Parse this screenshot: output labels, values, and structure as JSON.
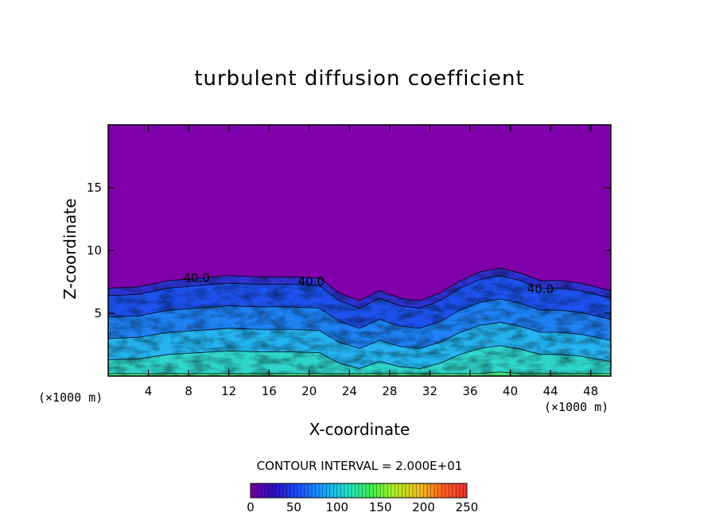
{
  "chart_data": {
    "type": "heatmap",
    "title": "turbulent diffusion coefficient",
    "xlabel": "X-coordinate",
    "ylabel": "Z-coordinate",
    "x_unit": "(×1000 m)",
    "z_unit": "(×1000 m)",
    "xlim": [
      0,
      50
    ],
    "ylim": [
      0,
      20
    ],
    "x_ticks": [
      4,
      8,
      12,
      16,
      20,
      24,
      28,
      32,
      36,
      40,
      44,
      48
    ],
    "y_ticks": [
      5,
      10,
      15
    ],
    "contour_interval_text": "CONTOUR INTERVAL = 2.000E+01",
    "contour_labels": [
      {
        "text": "40.0",
        "x": 8.8,
        "z": 7.5
      },
      {
        "text": "40.0",
        "x": 20.2,
        "z": 7.2
      },
      {
        "text": "40.0",
        "x": 43.0,
        "z": 6.6
      }
    ],
    "colorbar": {
      "min": 0,
      "max": 250,
      "tick_values": [
        0,
        50,
        100,
        150,
        200,
        250
      ],
      "tick_labels": [
        "0",
        "50",
        "100",
        "150",
        "200",
        "250"
      ],
      "colors": [
        "#7a00a8",
        "#2a10c8",
        "#1a50ff",
        "#1aa0ff",
        "#20e0d0",
        "#3cf050",
        "#b0f020",
        "#f0c020",
        "#ff6020",
        "#f03030"
      ]
    },
    "background_value_color": "#7f00aa",
    "turbulent_layer_top": [
      {
        "x": 0,
        "z": 7.0
      },
      {
        "x": 3,
        "z": 7.1
      },
      {
        "x": 6,
        "z": 7.6
      },
      {
        "x": 9,
        "z": 7.8
      },
      {
        "x": 12,
        "z": 8.0
      },
      {
        "x": 15,
        "z": 7.9
      },
      {
        "x": 18,
        "z": 7.9
      },
      {
        "x": 21,
        "z": 7.8
      },
      {
        "x": 23,
        "z": 6.6
      },
      {
        "x": 25,
        "z": 6.0
      },
      {
        "x": 27,
        "z": 6.8
      },
      {
        "x": 29,
        "z": 6.2
      },
      {
        "x": 31,
        "z": 6.0
      },
      {
        "x": 33,
        "z": 6.6
      },
      {
        "x": 35,
        "z": 7.6
      },
      {
        "x": 37,
        "z": 8.3
      },
      {
        "x": 39,
        "z": 8.6
      },
      {
        "x": 41,
        "z": 8.2
      },
      {
        "x": 43,
        "z": 7.6
      },
      {
        "x": 45,
        "z": 7.6
      },
      {
        "x": 47,
        "z": 7.4
      },
      {
        "x": 50,
        "z": 6.8
      }
    ]
  }
}
